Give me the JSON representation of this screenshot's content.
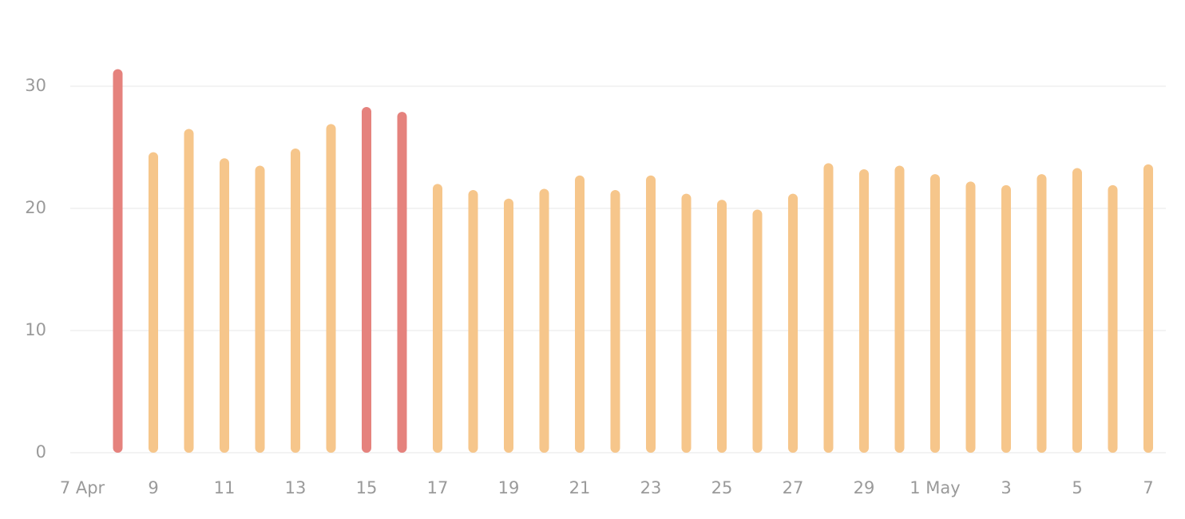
{
  "chart_data": {
    "type": "bar",
    "categories": [
      "7 Apr",
      null,
      "9",
      null,
      "11",
      null,
      "13",
      null,
      "15",
      null,
      "17",
      null,
      "19",
      null,
      "21",
      null,
      "23",
      null,
      "25",
      null,
      "27",
      null,
      "29",
      null,
      "1 May",
      null,
      "3",
      null,
      "5",
      null,
      "7"
    ],
    "values": [
      null,
      31.4,
      24.6,
      26.5,
      24.1,
      23.5,
      24.9,
      26.9,
      28.3,
      27.9,
      22.0,
      21.5,
      20.8,
      21.6,
      22.7,
      21.5,
      22.7,
      21.2,
      20.7,
      19.9,
      21.2,
      23.7,
      23.2,
      23.5,
      22.8,
      22.2,
      21.9,
      22.8,
      23.3,
      21.9,
      23.6
    ],
    "colors": [
      null,
      "#e5827d",
      "#f6c68b",
      "#f6c68b",
      "#f6c68b",
      "#f6c68b",
      "#f6c68b",
      "#f6c68b",
      "#e5827d",
      "#e5827d",
      "#f6c68b",
      "#f6c68b",
      "#f6c68b",
      "#f6c68b",
      "#f6c68b",
      "#f6c68b",
      "#f6c68b",
      "#f6c68b",
      "#f6c68b",
      "#f6c68b",
      "#f6c68b",
      "#f6c68b",
      "#f6c68b",
      "#f6c68b",
      "#f6c68b",
      "#f6c68b",
      "#f6c68b",
      "#f6c68b",
      "#f6c68b",
      "#f6c68b",
      "#f6c68b"
    ],
    "ylim": [
      0,
      32
    ],
    "yticks": [
      0,
      10,
      20,
      30
    ],
    "grid": true
  }
}
